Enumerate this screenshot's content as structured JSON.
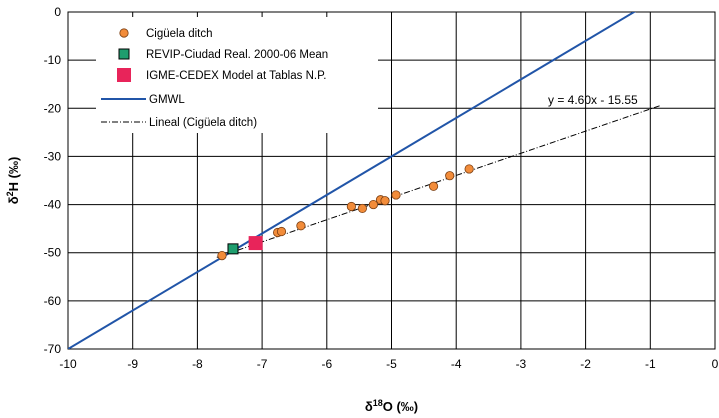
{
  "chart_data": {
    "type": "scatter",
    "xlabel_main": "δ",
    "xlabel_sup": "18",
    "xlabel_rest": "O (‰)",
    "ylabel_main": "δ",
    "ylabel_sup": "2",
    "ylabel_rest": "H (‰)",
    "xlim": [
      -10,
      0
    ],
    "ylim": [
      -70,
      0
    ],
    "x_ticks": [
      -10,
      -9,
      -8,
      -7,
      -6,
      -5,
      -4,
      -3,
      -2,
      -1,
      0
    ],
    "x_tick_labels": [
      "-10",
      "-9",
      "-8",
      "-7",
      "-6",
      "-5",
      "-4",
      "-3",
      "-2",
      "-1",
      "0"
    ],
    "y_ticks": [
      0,
      -10,
      -20,
      -30,
      -40,
      -50,
      -60,
      -70
    ],
    "y_tick_labels": [
      "0",
      "-10",
      "-20",
      "-30",
      "-40",
      "-50",
      "-60",
      "-70"
    ],
    "grid": true,
    "legend_position": "top-left",
    "series": [
      {
        "name": "Cigüela ditch",
        "kind": "points",
        "marker": "circle",
        "color": "#F28C3A",
        "points": [
          [
            -7.62,
            -50.6
          ],
          [
            -7.08,
            -48.4
          ],
          [
            -6.76,
            -45.8
          ],
          [
            -6.7,
            -45.6
          ],
          [
            -6.4,
            -44.4
          ],
          [
            -5.62,
            -40.4
          ],
          [
            -5.45,
            -40.8
          ],
          [
            -5.28,
            -40.0
          ],
          [
            -5.17,
            -39.0
          ],
          [
            -5.1,
            -39.2
          ],
          [
            -4.93,
            -38.0
          ],
          [
            -4.35,
            -36.2
          ],
          [
            -4.1,
            -34.0
          ],
          [
            -3.8,
            -32.6
          ]
        ]
      },
      {
        "name": "REVIP-Ciudad Real. 2000-06 Mean",
        "kind": "points",
        "marker": "square",
        "color": "#1E9E6E",
        "points": [
          [
            -7.45,
            -49.2
          ]
        ]
      },
      {
        "name": "IGME-CEDEX Model at Tablas N.P.",
        "kind": "points",
        "marker": "square-large",
        "color": "#E8245A",
        "points": [
          [
            -7.1,
            -48.0
          ]
        ]
      },
      {
        "name": "GMWL",
        "kind": "line",
        "color": "#2155A8",
        "slope": 8,
        "intercept": 10
      },
      {
        "name": "Lineal (Cigüela ditch)",
        "kind": "trend",
        "color": "#000000",
        "slope": 4.6,
        "intercept": -15.55,
        "x_range": [
          -7.7,
          -0.85
        ]
      }
    ],
    "annotation": "y = 4.60x - 15.55"
  }
}
